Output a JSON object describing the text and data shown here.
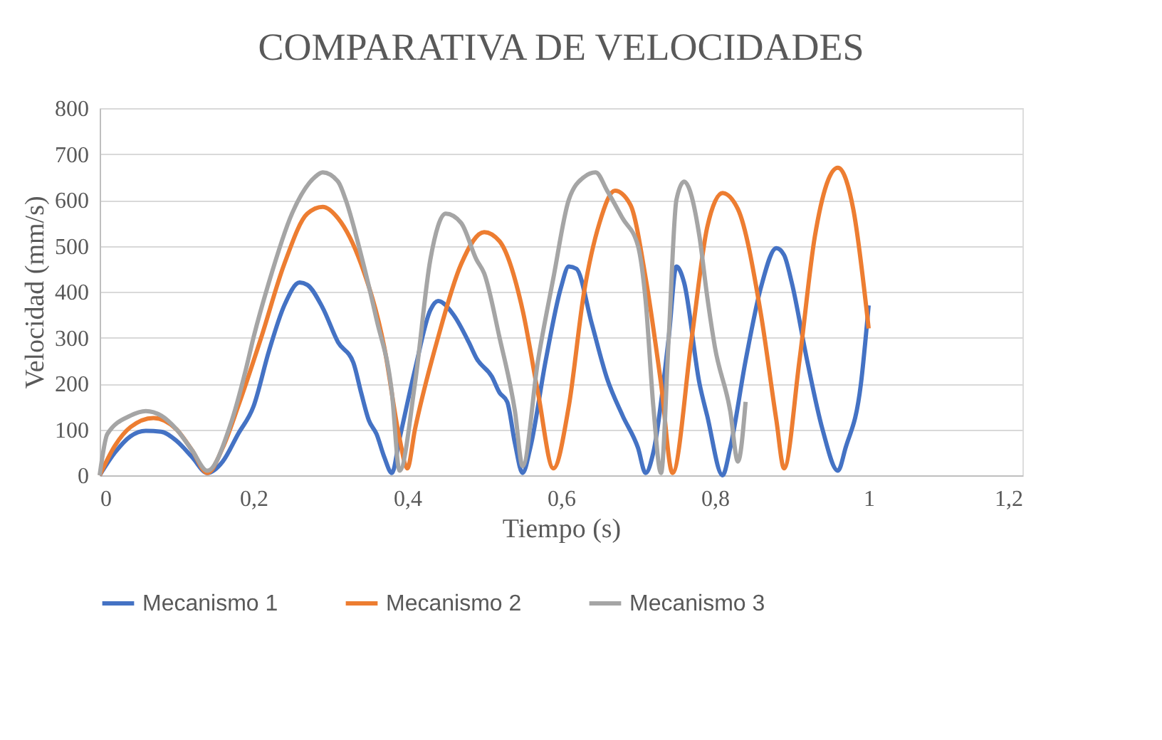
{
  "chart_data": {
    "type": "line",
    "title": "COMPARATIVA DE VELOCIDADES",
    "xlabel": "Tiempo (s)",
    "ylabel": "Velocidad (mm/s)",
    "xlim": [
      0,
      1.2
    ],
    "xticks": [
      {
        "value": 0,
        "label": "0"
      },
      {
        "value": 0.2,
        "label": "0,2"
      },
      {
        "value": 0.4,
        "label": "0,4"
      },
      {
        "value": 0.6,
        "label": "0,6"
      },
      {
        "value": 0.8,
        "label": "0,8"
      },
      {
        "value": 1,
        "label": "1"
      },
      {
        "value": 1.2,
        "label": "1,2"
      }
    ],
    "ylim": [
      0,
      800
    ],
    "yticks": [
      0,
      100,
      200,
      300,
      400,
      500,
      600,
      700,
      800
    ],
    "grid": "y",
    "legend": "bottom",
    "marker": "none",
    "line_style": "solid",
    "series": [
      {
        "name": "Mecanismo 1",
        "color": "#4472c4",
        "x": [
          0,
          0.02,
          0.04,
          0.06,
          0.08,
          0.1,
          0.12,
          0.14,
          0.16,
          0.18,
          0.2,
          0.22,
          0.24,
          0.26,
          0.27,
          0.29,
          0.31,
          0.33,
          0.34,
          0.35,
          0.36,
          0.37,
          0.38,
          0.39,
          0.41,
          0.43,
          0.44,
          0.46,
          0.48,
          0.49,
          0.51,
          0.52,
          0.53,
          0.54,
          0.55,
          0.56,
          0.58,
          0.6,
          0.61,
          0.62,
          0.64,
          0.66,
          0.68,
          0.7,
          0.71,
          0.72,
          0.74,
          0.75,
          0.76,
          0.78,
          0.79,
          0.81,
          0.82,
          0.84,
          0.86,
          0.88,
          0.89,
          0.9,
          0.92,
          0.94,
          0.96,
          0.97,
          0.99,
          1.0
        ],
        "values": [
          0,
          50,
          85,
          97,
          95,
          75,
          40,
          5,
          30,
          90,
          150,
          270,
          370,
          420,
          415,
          365,
          290,
          245,
          180,
          120,
          90,
          40,
          5,
          80,
          230,
          360,
          380,
          350,
          290,
          255,
          215,
          180,
          160,
          70,
          5,
          60,
          250,
          410,
          455,
          450,
          330,
          210,
          130,
          60,
          5,
          50,
          300,
          455,
          420,
          200,
          130,
          0,
          60,
          250,
          410,
          495,
          480,
          420,
          250,
          100,
          10,
          60,
          200,
          370
        ]
      },
      {
        "name": "Mecanismo 2",
        "color": "#ed7d31",
        "x": [
          0,
          0.02,
          0.04,
          0.07,
          0.1,
          0.12,
          0.14,
          0.16,
          0.18,
          0.21,
          0.24,
          0.27,
          0.29,
          0.31,
          0.34,
          0.37,
          0.39,
          0.4,
          0.41,
          0.44,
          0.47,
          0.5,
          0.52,
          0.55,
          0.57,
          0.59,
          0.61,
          0.63,
          0.65,
          0.67,
          0.69,
          0.71,
          0.73,
          0.745,
          0.77,
          0.79,
          0.81,
          0.83,
          0.86,
          0.88,
          0.89,
          0.91,
          0.93,
          0.96,
          0.98,
          1.0
        ],
        "values": [
          0,
          65,
          105,
          125,
          100,
          55,
          5,
          60,
          150,
          300,
          460,
          570,
          585,
          560,
          460,
          280,
          80,
          15,
          100,
          300,
          460,
          530,
          510,
          360,
          180,
          15,
          150,
          400,
          550,
          620,
          590,
          430,
          200,
          5,
          300,
          540,
          615,
          580,
          350,
          120,
          15,
          250,
          520,
          670,
          580,
          320
        ]
      },
      {
        "name": "Mecanismo 3",
        "color": "#a5a5a5",
        "x": [
          0,
          0.01,
          0.04,
          0.06,
          0.08,
          0.1,
          0.12,
          0.14,
          0.17,
          0.19,
          0.2,
          0.22,
          0.25,
          0.28,
          0.29,
          0.31,
          0.32,
          0.34,
          0.36,
          0.38,
          0.39,
          0.41,
          0.43,
          0.45,
          0.47,
          0.49,
          0.5,
          0.52,
          0.54,
          0.55,
          0.57,
          0.59,
          0.61,
          0.63,
          0.645,
          0.66,
          0.68,
          0.7,
          0.71,
          0.72,
          0.73,
          0.74,
          0.75,
          0.76,
          0.78,
          0.79,
          0.8,
          0.82,
          0.83,
          0.84
        ],
        "values": [
          0,
          90,
          130,
          140,
          130,
          100,
          55,
          10,
          110,
          230,
          300,
          420,
          570,
          650,
          660,
          640,
          600,
          480,
          340,
          180,
          10,
          200,
          470,
          570,
          550,
          470,
          440,
          300,
          140,
          20,
          250,
          430,
          600,
          650,
          660,
          620,
          560,
          500,
          380,
          150,
          5,
          300,
          600,
          640,
          520,
          390,
          280,
          140,
          30,
          160
        ]
      }
    ]
  }
}
